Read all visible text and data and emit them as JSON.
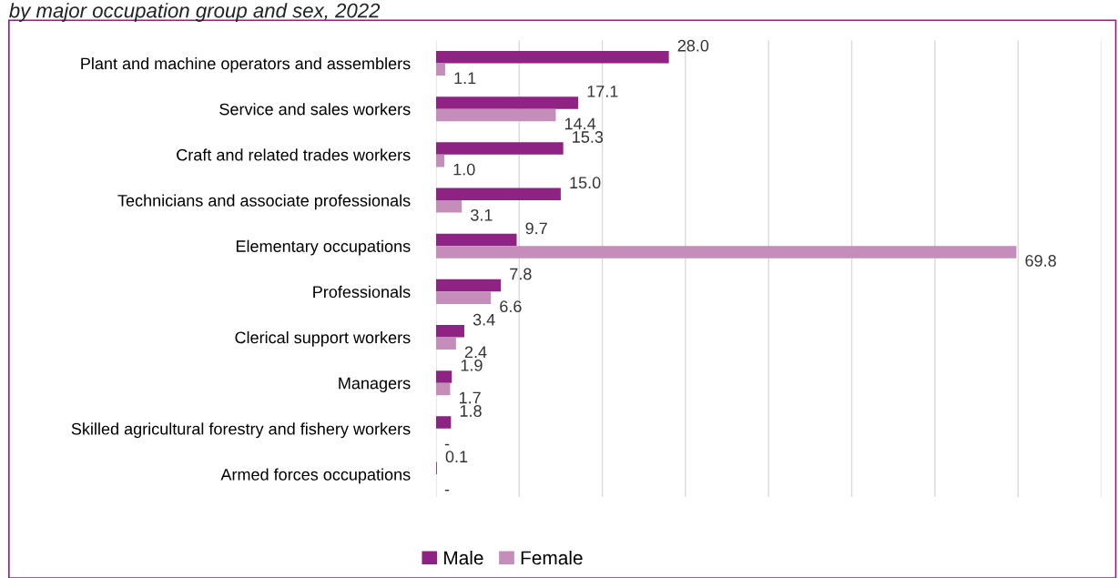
{
  "chart_data": {
    "type": "bar",
    "orientation": "horizontal",
    "title": "by major occupation group and sex, 2022",
    "categories": [
      "Plant and machine operators and assemblers",
      "Service and sales workers",
      "Craft and related trades workers",
      "Technicians and associate professionals",
      "Elementary occupations",
      "Professionals",
      "Clerical support workers",
      "Managers",
      "Skilled agricultural forestry and fishery workers",
      "Armed forces occupations"
    ],
    "series": [
      {
        "name": "Male",
        "color": "#8e2383",
        "values": [
          28.0,
          17.1,
          15.3,
          15.0,
          9.7,
          7.8,
          3.4,
          1.9,
          1.8,
          0.1
        ],
        "value_labels": [
          "28.0",
          "17.1",
          "15.3",
          "15.0",
          "9.7",
          "7.8",
          "3.4",
          "1.9",
          "1.8",
          "0.1"
        ]
      },
      {
        "name": "Female",
        "color": "#c48dba",
        "values": [
          1.1,
          14.4,
          1.0,
          3.1,
          69.8,
          6.6,
          2.4,
          1.7,
          null,
          null
        ],
        "value_labels": [
          "1.1",
          "14.4",
          "1.0",
          "3.1",
          "69.8",
          "6.6",
          "2.4",
          "1.7",
          "-",
          "-"
        ]
      }
    ],
    "xlim": [
      0,
      80
    ],
    "xticks": [
      {
        "value": 0,
        "label": null
      },
      {
        "value": 10,
        "label": null
      },
      {
        "value": 20,
        "label": null
      },
      {
        "value": 30,
        "label": null
      },
      {
        "value": 40,
        "label": null
      },
      {
        "value": 50,
        "label": null
      },
      {
        "value": 60,
        "label": null
      },
      {
        "value": 70,
        "label": null
      },
      {
        "value": 80,
        "label": null
      }
    ],
    "grid": "x",
    "tick_labels": "y",
    "legend": "bottom"
  }
}
